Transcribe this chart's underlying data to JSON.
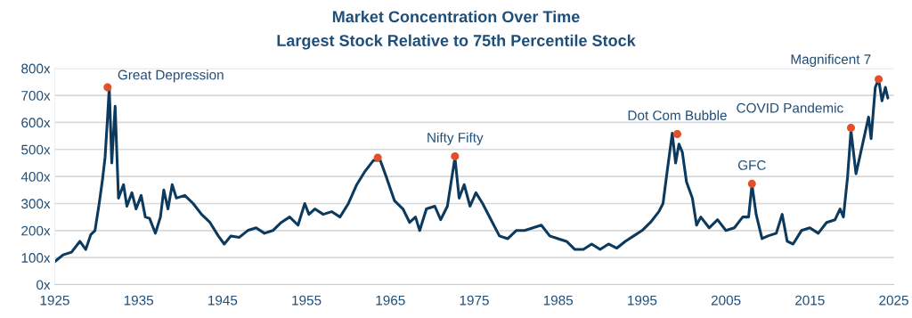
{
  "chart_data": {
    "type": "line",
    "title": "Market Concentration Over Time",
    "subtitle": "Largest Stock Relative to 75th Percentile Stock",
    "series": [
      {
        "color": "#0b3a5e",
        "x": [
          1925,
          1926,
          1927,
          1928,
          1928.7,
          1929.3,
          1929.8,
          1930.3,
          1930.7,
          1931.0,
          1931.3,
          1931.5,
          1931.8,
          1932.2,
          1932.6,
          1933.2,
          1933.6,
          1934.2,
          1934.7,
          1935.3,
          1935.8,
          1936.3,
          1937.0,
          1937.6,
          1938.0,
          1938.5,
          1939.0,
          1939.5,
          1940.5,
          1941.5,
          1942.5,
          1943.5,
          1944.5,
          1945.2,
          1946,
          1947,
          1948,
          1949,
          1950,
          1951,
          1952,
          1953,
          1954,
          1954.8,
          1955.3,
          1956,
          1957,
          1958,
          1959,
          1960,
          1961,
          1962,
          1963,
          1963.8,
          1964.5,
          1965.5,
          1966.5,
          1967.3,
          1968,
          1968.5,
          1969.3,
          1970.3,
          1971,
          1971.8,
          1972.7,
          1973.2,
          1973.8,
          1974.5,
          1975.2,
          1976,
          1977,
          1978,
          1979,
          1980,
          1981,
          1982,
          1983,
          1984,
          1985,
          1986,
          1987,
          1988,
          1989,
          1990,
          1991,
          1992,
          1993,
          1994,
          1995,
          1996,
          1997,
          1997.5,
          1998,
          1998.6,
          1999,
          1999.4,
          1999.8,
          2000.3,
          2001,
          2001.5,
          2002,
          2003,
          2004,
          2005,
          2006,
          2007,
          2007.7,
          2008.1,
          2008.6,
          2009.3,
          2010,
          2011,
          2011.7,
          2012.3,
          2013,
          2014,
          2015,
          2016,
          2017,
          2018,
          2018.6,
          2019,
          2019.5,
          2019.9,
          2020.5,
          2021,
          2021.5,
          2022,
          2022.3,
          2022.8,
          2023.2,
          2023.6,
          2024,
          2024.3
        ],
        "values": [
          85,
          110,
          120,
          160,
          130,
          185,
          200,
          300,
          390,
          470,
          620,
          730,
          450,
          660,
          320,
          370,
          290,
          340,
          280,
          330,
          250,
          245,
          190,
          250,
          350,
          280,
          370,
          320,
          330,
          300,
          260,
          230,
          180,
          150,
          180,
          175,
          200,
          210,
          190,
          200,
          230,
          250,
          220,
          300,
          260,
          280,
          260,
          270,
          250,
          300,
          370,
          420,
          460,
          460,
          400,
          310,
          280,
          230,
          250,
          200,
          280,
          290,
          240,
          290,
          470,
          320,
          370,
          290,
          340,
          300,
          240,
          180,
          170,
          200,
          200,
          210,
          220,
          180,
          170,
          160,
          130,
          130,
          150,
          130,
          150,
          135,
          160,
          180,
          200,
          230,
          270,
          300,
          420,
          560,
          450,
          520,
          490,
          380,
          320,
          220,
          250,
          210,
          240,
          200,
          210,
          250,
          250,
          370,
          260,
          170,
          180,
          190,
          260,
          160,
          150,
          200,
          210,
          190,
          230,
          240,
          280,
          250,
          400,
          570,
          410,
          480,
          550,
          620,
          540,
          730,
          760,
          680,
          730,
          690
        ]
      },
      {
        "type": "scatter",
        "color": "#e0502a",
        "x": [
          1931.3,
          1963.5,
          1972.7,
          1999.2,
          2008.1,
          2019.9,
          2023.2
        ],
        "values": [
          730,
          470,
          475,
          557,
          373,
          580,
          760
        ]
      }
    ],
    "annotations": [
      {
        "text": "Great Depression",
        "x": 1931.3,
        "y": 730
      },
      {
        "text": "Nifty Fifty",
        "x": 1972.7,
        "y": 475
      },
      {
        "text": "Dot Com Bubble",
        "x": 1999.2,
        "y": 557
      },
      {
        "text": "GFC",
        "x": 2008.1,
        "y": 373
      },
      {
        "text": "COVID Pandemic",
        "x": 2019.9,
        "y": 580
      },
      {
        "text": "Magnificent 7",
        "x": 2023.2,
        "y": 760
      }
    ],
    "xlim": [
      1925,
      2025
    ],
    "xticks": [
      1925,
      1935,
      1945,
      1955,
      1965,
      1975,
      1985,
      1995,
      2005,
      2015,
      2025
    ],
    "ylim": [
      0,
      800
    ],
    "yticks": [
      {
        "value": 0,
        "label": "0x"
      },
      {
        "value": 100,
        "label": "100x"
      },
      {
        "value": 200,
        "label": "200x"
      },
      {
        "value": 300,
        "label": "300x"
      },
      {
        "value": 400,
        "label": "400x"
      },
      {
        "value": 500,
        "label": "500x"
      },
      {
        "value": 600,
        "label": "600x"
      },
      {
        "value": 700,
        "label": "700x"
      },
      {
        "value": 800,
        "label": "800x"
      }
    ],
    "grid": "y",
    "legend": false
  }
}
